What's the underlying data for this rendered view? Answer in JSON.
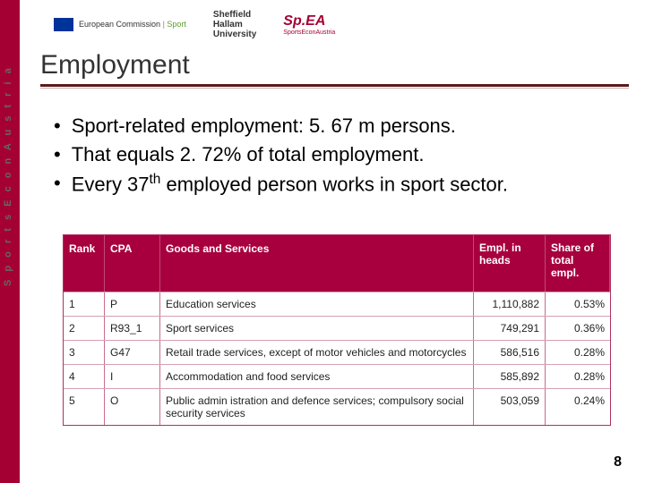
{
  "brand_bar_color": "#a50034",
  "vertical_brand": "S p o r t s E c o n A u s t r i a",
  "logos": {
    "ec": "European Commission",
    "ec_sub": "Sport",
    "shu_line1": "Sheffield",
    "shu_line2": "Hallam",
    "shu_line3": "University",
    "spea": "Sp.EA",
    "spea_sub": "SportsEconAustria"
  },
  "title": "Employment",
  "bullets": [
    "Sport-related employment: 5. 67 m persons.",
    "That equals 2. 72% of total employment.",
    "Every 37__SUP__th__/SUP__ employed person works in sport sector."
  ],
  "table": {
    "header_bg": "#a8003e",
    "columns": [
      "Rank",
      "CPA",
      "Goods and Services",
      "Empl. in heads",
      "Share of total empl."
    ],
    "rows": [
      {
        "rank": "1",
        "cpa": "P",
        "gs": "Education services",
        "emp": "1,110,882",
        "share": "0.53%"
      },
      {
        "rank": "2",
        "cpa": "R93_1",
        "gs": "Sport services",
        "emp": "749,291",
        "share": "0.36%"
      },
      {
        "rank": "3",
        "cpa": "G47",
        "gs": "Retail trade services, except of motor vehicles and motorcycles",
        "emp": "586,516",
        "share": "0.28%"
      },
      {
        "rank": "4",
        "cpa": "I",
        "gs": "Accommodation and food services",
        "emp": "585,892",
        "share": "0.28%"
      },
      {
        "rank": "5",
        "cpa": "O",
        "gs": "Public admin istration and defence services; compulsory social security services",
        "emp": "503,059",
        "share": "0.24%"
      }
    ]
  },
  "page_number": "8"
}
